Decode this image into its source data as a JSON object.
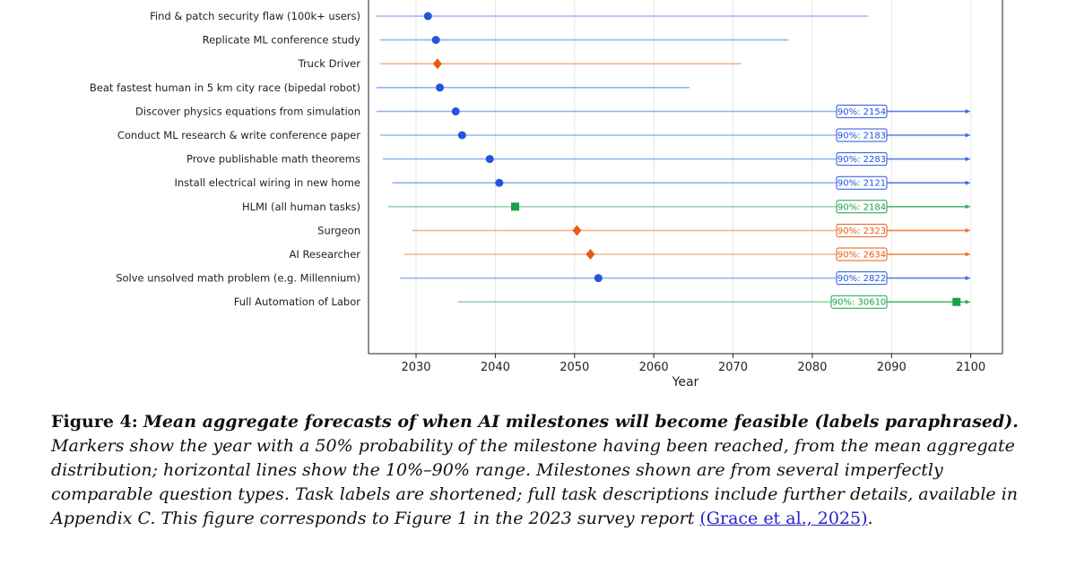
{
  "chart_data": {
    "type": "scatter",
    "xlabel": "Year",
    "xlim": [
      2024,
      2104
    ],
    "xticks": [
      2030,
      2040,
      2050,
      2060,
      2070,
      2080,
      2090,
      2100
    ],
    "grid": "vertical",
    "colors": {
      "blue": "#2255dd",
      "orange": "#e85a10",
      "green": "#1aa04a"
    },
    "series": [
      {
        "label": "Find & patch security flaw (100k+ users)",
        "median": 2031.5,
        "low": 2025,
        "high": 2087,
        "marker": "circle",
        "color": "blue",
        "overflow": ""
      },
      {
        "label": "Replicate ML conference study",
        "median": 2032.5,
        "low": 2025.5,
        "high": 2077,
        "marker": "circle",
        "color": "blue",
        "overflow": ""
      },
      {
        "label": "Truck Driver",
        "median": 2032.7,
        "low": 2025.5,
        "high": 2071,
        "marker": "diamond",
        "color": "orange",
        "overflow": ""
      },
      {
        "label": "Beat fastest human in 5 km city race (bipedal robot)",
        "median": 2033,
        "low": 2025,
        "high": 2064.5,
        "marker": "circle",
        "color": "blue",
        "overflow": ""
      },
      {
        "label": "Discover physics equations from simulation",
        "median": 2035,
        "low": 2025,
        "high": 2154,
        "marker": "circle",
        "color": "blue",
        "overflow": "90%: 2154"
      },
      {
        "label": "Conduct ML research & write conference paper",
        "median": 2035.8,
        "low": 2025.5,
        "high": 2183,
        "marker": "circle",
        "color": "blue",
        "overflow": "90%: 2183"
      },
      {
        "label": "Prove publishable math theorems",
        "median": 2039.3,
        "low": 2025.8,
        "high": 2283,
        "marker": "circle",
        "color": "blue",
        "overflow": "90%: 2283"
      },
      {
        "label": "Install electrical wiring in new home",
        "median": 2040.5,
        "low": 2027,
        "high": 2121,
        "marker": "circle",
        "color": "blue",
        "overflow": "90%: 2121"
      },
      {
        "label": "HLMI (all human tasks)",
        "median": 2042.5,
        "low": 2026.5,
        "high": 2184,
        "marker": "square",
        "color": "green",
        "overflow": "90%: 2184"
      },
      {
        "label": "Surgeon",
        "median": 2050.3,
        "low": 2029.5,
        "high": 2323,
        "marker": "diamond",
        "color": "orange",
        "overflow": "90%: 2323"
      },
      {
        "label": "AI Researcher",
        "median": 2052,
        "low": 2028.5,
        "high": 2634,
        "marker": "diamond",
        "color": "orange",
        "overflow": "90%: 2634"
      },
      {
        "label": "Solve unsolved math problem (e.g. Millennium)",
        "median": 2053,
        "low": 2028,
        "high": 2822,
        "marker": "circle",
        "color": "blue",
        "overflow": "90%: 2822"
      },
      {
        "label": "Full Automation of Labor",
        "median": 2098.2,
        "low": 2035.3,
        "high": 30610,
        "marker": "square",
        "color": "green",
        "overflow": "90%: 30610"
      }
    ]
  },
  "caption": {
    "label": "Figure 4:",
    "title": "Mean aggregate forecasts of when AI milestones will become feasible (labels paraphrased).",
    "body": "Markers show the year with a 50% probability of the milestone having been reached, from the mean aggregate distribution; horizontal lines show the 10%–90% range. Milestones shown are from several imperfectly comparable question types. Task labels are shortened; full task descriptions include further details, available in Appendix C. This figure corresponds to Figure 1 in the 2023 survey report",
    "citation": "(Grace et al., 2025)",
    "end": "."
  }
}
